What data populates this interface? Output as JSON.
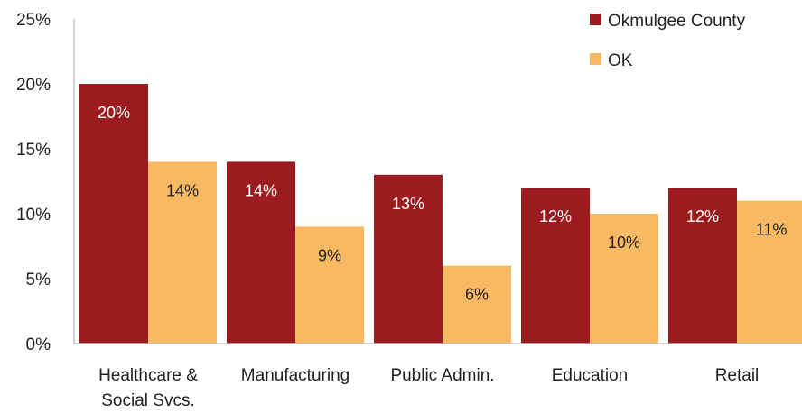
{
  "chart_data": {
    "type": "bar",
    "categories": [
      [
        "Healthcare &",
        "Social Svcs."
      ],
      [
        "Manufacturing"
      ],
      [
        "Public Admin."
      ],
      [
        "Education"
      ],
      [
        "Retail"
      ]
    ],
    "series": [
      {
        "name": "Okmulgee County",
        "values": [
          20,
          14,
          13,
          12,
          12
        ],
        "labels": [
          "20%",
          "14%",
          "13%",
          "12%",
          "12%"
        ],
        "color": "#9B1B1E",
        "label_color": "#ffffff"
      },
      {
        "name": "OK",
        "values": [
          14,
          9,
          6,
          10,
          11
        ],
        "labels": [
          "14%",
          "9%",
          "6%",
          "10%",
          "11%"
        ],
        "color": "#F9B862",
        "label_color": "#222222"
      }
    ],
    "ylim": [
      0,
      25
    ],
    "yticks": [
      0,
      5,
      10,
      15,
      20,
      25
    ],
    "ytick_labels": [
      "0%",
      "5%",
      "10%",
      "15%",
      "20%",
      "25%"
    ],
    "grid": false,
    "legend": "top-right",
    "axis_color": "#bfbfbf"
  }
}
